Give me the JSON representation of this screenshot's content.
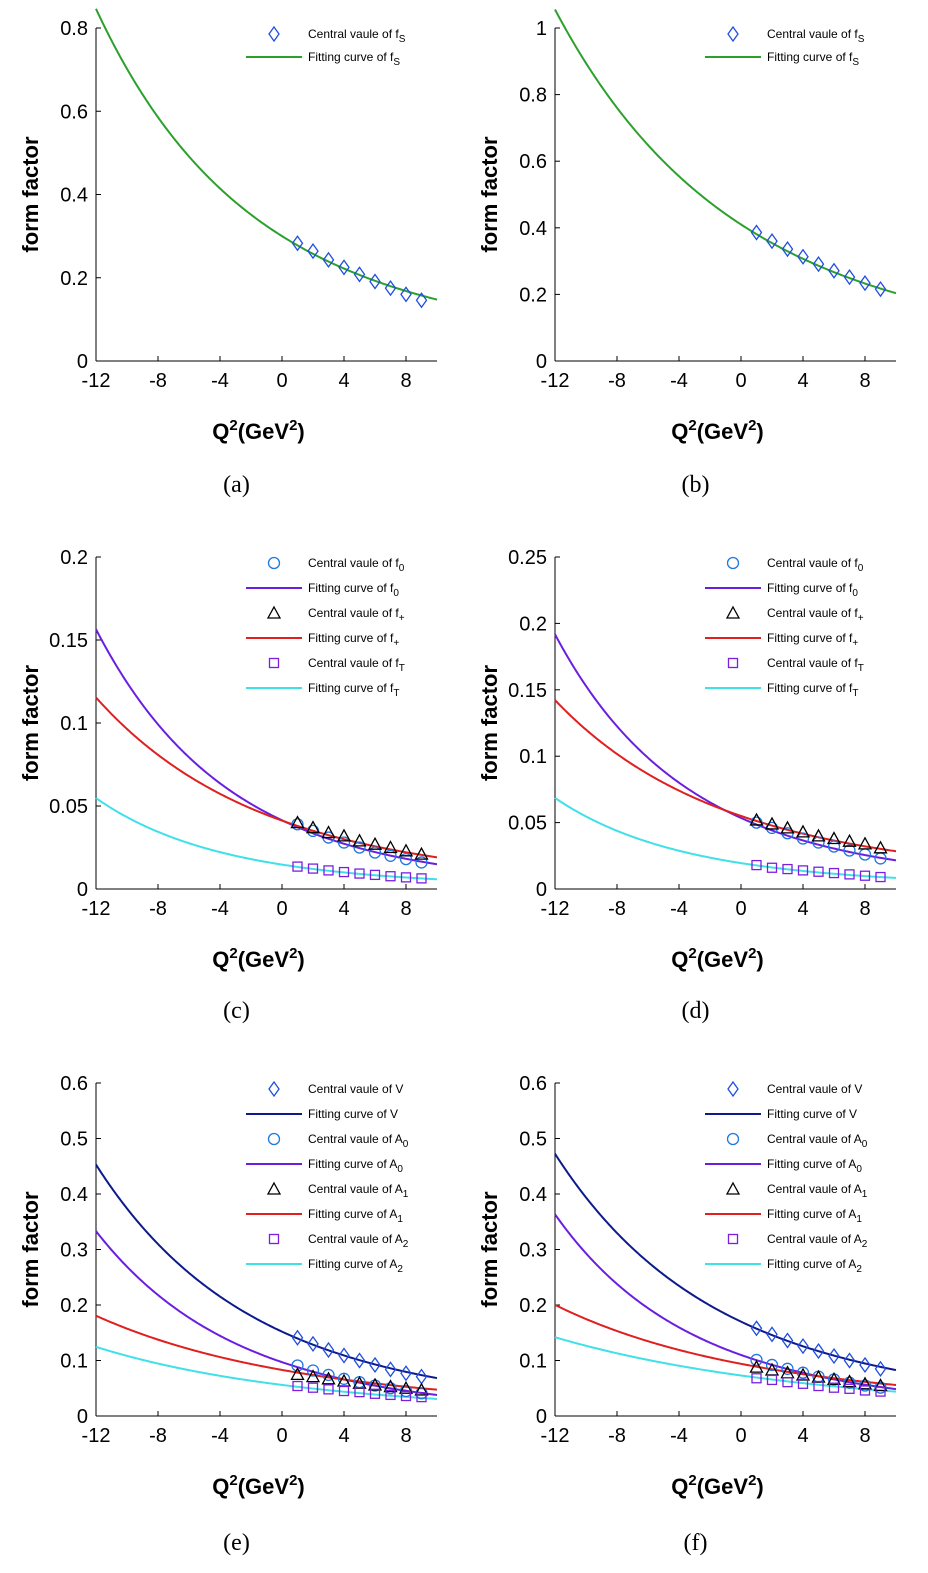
{
  "chart_data": [
    {
      "type": "line",
      "caption": "(a)",
      "xlabel": "Q",
      "ylabel": "form factor",
      "xlim": [
        -12,
        10
      ],
      "ylim": [
        0,
        0.8
      ],
      "xticks": [
        "-12",
        "-8",
        "-4",
        "0",
        "4",
        "8"
      ],
      "yticks": [
        "0",
        "0.2",
        "0.4",
        "0.6",
        "0.8"
      ],
      "series": [
        {
          "kind": "points",
          "marker": "diamond",
          "color": "#1f4ee0",
          "label": "Central vaule of f",
          "sub": "S",
          "x": [
            1,
            2,
            3,
            4,
            5,
            6,
            7,
            8,
            9
          ],
          "values": [
            0.283,
            0.264,
            0.243,
            0.225,
            0.208,
            0.191,
            0.175,
            0.16,
            0.146
          ]
        },
        {
          "kind": "curve",
          "color": "#2ca02c",
          "label": "Fitting curve of f",
          "sub": "S",
          "y0": 0.3,
          "a": 0.078,
          "b": 0.0007
        }
      ]
    },
    {
      "type": "line",
      "caption": "(b)",
      "xlabel": "Q",
      "ylabel": "form factor",
      "xlim": [
        -12,
        10
      ],
      "ylim": [
        0,
        1
      ],
      "xticks": [
        "-12",
        "-8",
        "-4",
        "0",
        "4",
        "8"
      ],
      "yticks": [
        "0",
        "0.2",
        "0.4",
        "0.6",
        "0.8",
        "1"
      ],
      "series": [
        {
          "kind": "points",
          "marker": "diamond",
          "color": "#1f4ee0",
          "label": "Central vaule of f",
          "sub": "S",
          "x": [
            1,
            2,
            3,
            4,
            5,
            6,
            7,
            8,
            9
          ],
          "values": [
            0.386,
            0.36,
            0.336,
            0.313,
            0.291,
            0.271,
            0.252,
            0.234,
            0.216
          ]
        },
        {
          "kind": "curve",
          "color": "#2ca02c",
          "label": "Fitting curve of f",
          "sub": "S",
          "y0": 0.41,
          "a": 0.074,
          "b": 0.0004
        }
      ]
    },
    {
      "type": "line",
      "caption": "(c)",
      "xlabel": "Q",
      "ylabel": "form factor",
      "xlim": [
        -12,
        10
      ],
      "ylim": [
        0,
        0.2
      ],
      "xticks": [
        "-12",
        "-8",
        "-4",
        "0",
        "4",
        "8"
      ],
      "yticks": [
        "0",
        "0.05",
        "0.1",
        "0.15",
        "0.2"
      ],
      "series": [
        {
          "kind": "points",
          "marker": "circle",
          "color": "#1f77e0",
          "label": "Central vaule of f",
          "sub": "0",
          "x": [
            1,
            2,
            3,
            4,
            5,
            6,
            7,
            8,
            9
          ],
          "values": [
            0.039,
            0.035,
            0.031,
            0.028,
            0.025,
            0.022,
            0.02,
            0.018,
            0.016
          ]
        },
        {
          "kind": "curve",
          "color": "#6a1fe0",
          "label": "Fitting curve of f",
          "sub": "0",
          "y0": 0.0414,
          "a": 0.106,
          "b": 0.0004
        },
        {
          "kind": "points",
          "marker": "triangle",
          "color": "#000000",
          "label": "Central vaule of f",
          "sub": "+",
          "x": [
            1,
            2,
            3,
            4,
            5,
            6,
            7,
            8,
            9
          ],
          "values": [
            0.04,
            0.037,
            0.034,
            0.032,
            0.029,
            0.027,
            0.025,
            0.023,
            0.021
          ]
        },
        {
          "kind": "curve",
          "color": "#e01f1f",
          "label": "Fitting curve of f",
          "sub": "+",
          "y0": 0.0412,
          "a": 0.081,
          "b": 0.0004
        },
        {
          "kind": "points",
          "marker": "square",
          "color": "#7a1fe0",
          "label": "Central vaule of f",
          "sub": "T",
          "x": [
            1,
            2,
            3,
            4,
            5,
            6,
            7,
            8,
            9
          ],
          "values": [
            0.0135,
            0.0123,
            0.0112,
            0.0102,
            0.0093,
            0.0085,
            0.0077,
            0.007,
            0.0064
          ]
        },
        {
          "kind": "curve",
          "color": "#40e0e8",
          "label": "Fitting curve of f",
          "sub": "T",
          "y0": 0.0147,
          "a": 0.1,
          "b": 0.0008
        }
      ]
    },
    {
      "type": "line",
      "caption": "(d)",
      "xlabel": "Q",
      "ylabel": "form factor",
      "xlim": [
        -12,
        10
      ],
      "ylim": [
        0,
        0.25
      ],
      "xticks": [
        "-12",
        "-8",
        "-4",
        "0",
        "4",
        "8"
      ],
      "yticks": [
        "0",
        "0.05",
        "0.1",
        "0.15",
        "0.2",
        "0.25"
      ],
      "series": [
        {
          "kind": "points",
          "marker": "circle",
          "color": "#1f77e0",
          "label": "Central vaule of f",
          "sub": "0",
          "x": [
            1,
            2,
            3,
            4,
            5,
            6,
            7,
            8,
            9
          ],
          "values": [
            0.05,
            0.046,
            0.042,
            0.038,
            0.035,
            0.032,
            0.029,
            0.026,
            0.023
          ]
        },
        {
          "kind": "curve",
          "color": "#6a1fe0",
          "label": "Fitting curve of f",
          "sub": "0",
          "y0": 0.0535,
          "a": 0.098,
          "b": 0.0007
        },
        {
          "kind": "points",
          "marker": "triangle",
          "color": "#000000",
          "label": "Central vaule of f",
          "sub": "+",
          "x": [
            1,
            2,
            3,
            4,
            5,
            6,
            7,
            8,
            9
          ],
          "values": [
            0.052,
            0.049,
            0.046,
            0.043,
            0.04,
            0.038,
            0.036,
            0.034,
            0.031
          ]
        },
        {
          "kind": "curve",
          "color": "#e01f1f",
          "label": "Fitting curve of f",
          "sub": "+",
          "y0": 0.055,
          "a": 0.072,
          "b": 0.0006
        },
        {
          "kind": "points",
          "marker": "square",
          "color": "#7a1fe0",
          "label": "Central vaule of f",
          "sub": "T",
          "x": [
            1,
            2,
            3,
            4,
            5,
            6,
            7,
            8,
            9
          ],
          "values": [
            0.018,
            0.016,
            0.015,
            0.014,
            0.013,
            0.012,
            0.011,
            0.01,
            0.009
          ]
        },
        {
          "kind": "curve",
          "color": "#40e0e8",
          "label": "Fitting curve of f",
          "sub": "T",
          "y0": 0.0195,
          "a": 0.094,
          "b": 0.0009
        }
      ]
    },
    {
      "type": "line",
      "caption": "(e)",
      "xlabel": "Q",
      "ylabel": "form factor",
      "xlim": [
        -12,
        10
      ],
      "ylim": [
        0,
        0.6
      ],
      "xticks": [
        "-12",
        "-8",
        "-4",
        "0",
        "4",
        "8"
      ],
      "yticks": [
        "0",
        "0.1",
        "0.2",
        "0.3",
        "0.4",
        "0.5",
        "0.6"
      ],
      "series": [
        {
          "kind": "points",
          "marker": "diamond",
          "color": "#1f4ee0",
          "label": "Central vaule of V",
          "sub": "",
          "x": [
            1,
            2,
            3,
            4,
            5,
            6,
            7,
            8,
            9
          ],
          "values": [
            0.141,
            0.13,
            0.119,
            0.109,
            0.1,
            0.092,
            0.084,
            0.077,
            0.071
          ]
        },
        {
          "kind": "curve",
          "color": "#0d1a8c",
          "label": "Fitting curve of V",
          "sub": "",
          "y0": 0.152,
          "a": 0.085,
          "b": 0.0005
        },
        {
          "kind": "points",
          "marker": "circle",
          "color": "#1f77e0",
          "label": "Central vaule of A",
          "sub": "0",
          "x": [
            1,
            2,
            3,
            4,
            5,
            6,
            7,
            8,
            9
          ],
          "values": [
            0.091,
            0.082,
            0.074,
            0.067,
            0.061,
            0.055,
            0.05,
            0.045,
            0.041
          ]
        },
        {
          "kind": "curve",
          "color": "#6a1fe0",
          "label": "Fitting curve of A",
          "sub": "0",
          "y0": 0.097,
          "a": 0.098,
          "b": 0.0004
        },
        {
          "kind": "points",
          "marker": "triangle",
          "color": "#000000",
          "label": "Central vaule of A",
          "sub": "1",
          "x": [
            1,
            2,
            3,
            4,
            5,
            6,
            7,
            8,
            9
          ],
          "values": [
            0.075,
            0.071,
            0.067,
            0.063,
            0.059,
            0.056,
            0.053,
            0.05,
            0.047
          ]
        },
        {
          "kind": "curve",
          "color": "#e01f1f",
          "label": "Fitting curve of A",
          "sub": "1",
          "y0": 0.083,
          "a": 0.06,
          "b": 0.0004
        },
        {
          "kind": "points",
          "marker": "square",
          "color": "#7a1fe0",
          "label": "Central vaule of A",
          "sub": "2",
          "x": [
            1,
            2,
            3,
            4,
            5,
            6,
            7,
            8,
            9
          ],
          "values": [
            0.054,
            0.051,
            0.048,
            0.045,
            0.043,
            0.04,
            0.038,
            0.036,
            0.034
          ]
        },
        {
          "kind": "curve",
          "color": "#40e0e8",
          "label": "Fitting curve of A",
          "sub": "2",
          "y0": 0.056,
          "a": 0.063,
          "b": 0.0003
        }
      ]
    },
    {
      "type": "line",
      "caption": "(f)",
      "xlabel": "Q",
      "ylabel": "form factor",
      "xlim": [
        -12,
        10
      ],
      "ylim": [
        0,
        0.6
      ],
      "xticks": [
        "-12",
        "-8",
        "-4",
        "0",
        "4",
        "8"
      ],
      "yticks": [
        "0",
        "0.1",
        "0.2",
        "0.3",
        "0.4",
        "0.5",
        "0.6"
      ],
      "series": [
        {
          "kind": "points",
          "marker": "diamond",
          "color": "#1f4ee0",
          "label": "Central vaule of V",
          "sub": "",
          "x": [
            1,
            2,
            3,
            4,
            5,
            6,
            7,
            8,
            9
          ],
          "values": [
            0.158,
            0.147,
            0.136,
            0.126,
            0.117,
            0.108,
            0.1,
            0.092,
            0.085
          ]
        },
        {
          "kind": "curve",
          "color": "#0d1a8c",
          "label": "Fitting curve of V",
          "sub": "",
          "y0": 0.17,
          "a": 0.078,
          "b": 0.0006
        },
        {
          "kind": "points",
          "marker": "circle",
          "color": "#1f77e0",
          "label": "Central vaule of A",
          "sub": "0",
          "x": [
            1,
            2,
            3,
            4,
            5,
            6,
            7,
            8,
            9
          ],
          "values": [
            0.101,
            0.092,
            0.085,
            0.078,
            0.071,
            0.066,
            0.06,
            0.055,
            0.051
          ]
        },
        {
          "kind": "curve",
          "color": "#6a1fe0",
          "label": "Fitting curve of A",
          "sub": "0",
          "y0": 0.11,
          "a": 0.09,
          "b": 0.0008
        },
        {
          "kind": "points",
          "marker": "triangle",
          "color": "#000000",
          "label": "Central vaule of A",
          "sub": "1",
          "x": [
            1,
            2,
            3,
            4,
            5,
            6,
            7,
            8,
            9
          ],
          "values": [
            0.088,
            0.083,
            0.078,
            0.074,
            0.07,
            0.066,
            0.062,
            0.058,
            0.055
          ]
        },
        {
          "kind": "curve",
          "color": "#e01f1f",
          "label": "Fitting curve of A",
          "sub": "1",
          "y0": 0.094,
          "a": 0.057,
          "b": 0.0005
        },
        {
          "kind": "points",
          "marker": "square",
          "color": "#7a1fe0",
          "label": "Central vaule of A",
          "sub": "2",
          "x": [
            1,
            2,
            3,
            4,
            5,
            6,
            7,
            8,
            9
          ],
          "values": [
            0.068,
            0.065,
            0.061,
            0.058,
            0.054,
            0.051,
            0.049,
            0.046,
            0.044
          ]
        },
        {
          "kind": "curve",
          "color": "#40e0e8",
          "label": "Fitting curve of A",
          "sub": "2",
          "y0": 0.073,
          "a": 0.053,
          "b": 0.0002
        }
      ]
    }
  ]
}
